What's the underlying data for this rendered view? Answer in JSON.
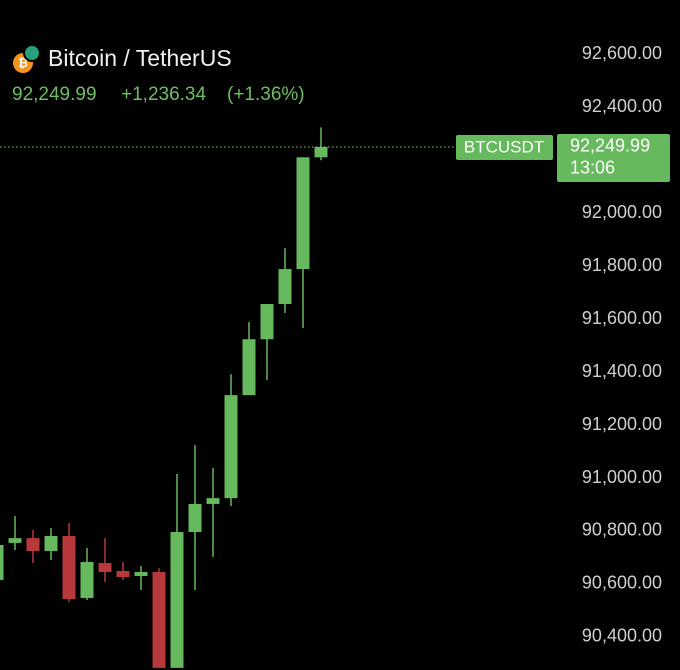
{
  "chart_data": {
    "type": "candlestick",
    "title": "Bitcoin / TetherUS",
    "last_price": {
      "value": 92249.99,
      "label": "92,249.99"
    },
    "change": {
      "value": 1236.34,
      "label": "+1,236.34"
    },
    "change_pct": {
      "value": 1.36,
      "label": "(+1.36%)"
    },
    "symbol": "BTCUSDT",
    "price_tag": {
      "value": 92249.99,
      "label": "92,249.99"
    },
    "countdown": "13:06",
    "up_color": "#66b95c",
    "down_color": "#b7393b",
    "open": [
      90615,
      90755,
      90773,
      90724,
      90781,
      90547,
      90679,
      90649,
      90630,
      90645,
      90283,
      90796,
      90902,
      90924,
      91313,
      91524,
      91657,
      91789,
      92211
    ],
    "high": [
      90766,
      90856,
      90804,
      90811,
      90830,
      90736,
      90773,
      90683,
      90668,
      90660,
      91015,
      91124,
      91038,
      91392,
      91589,
      91657,
      91868,
      92211,
      92324
    ],
    "low": [
      90600,
      90728,
      90679,
      90690,
      90532,
      90539,
      90607,
      90615,
      90577,
      90283,
      90283,
      90577,
      90702,
      90894,
      91313,
      91370,
      91623,
      91566,
      92200
    ],
    "close": [
      90747,
      90773,
      90724,
      90781,
      90543,
      90683,
      90645,
      90626,
      90645,
      90283,
      90796,
      90902,
      90924,
      91313,
      91524,
      91657,
      91789,
      92211,
      92249.99
    ],
    "ylim": [
      90275,
      92805
    ],
    "yticks": [
      {
        "value": 92600,
        "label": "92,600.00"
      },
      {
        "value": 92400,
        "label": "92,400.00"
      },
      {
        "value": 92000,
        "label": "92,000.00"
      },
      {
        "value": 91800,
        "label": "91,800.00"
      },
      {
        "value": 91600,
        "label": "91,600.00"
      },
      {
        "value": 91400,
        "label": "91,400.00"
      },
      {
        "value": 91200,
        "label": "91,200.00"
      },
      {
        "value": 91000,
        "label": "91,000.00"
      },
      {
        "value": 90800,
        "label": "90,800.00"
      },
      {
        "value": 90600,
        "label": "90,600.00"
      },
      {
        "value": 90400,
        "label": "90,400.00"
      }
    ]
  }
}
